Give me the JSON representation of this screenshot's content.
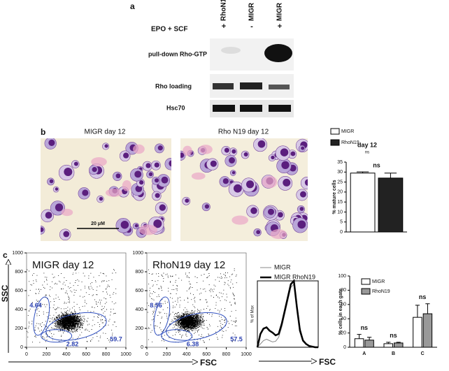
{
  "panel_a": {
    "label": "a",
    "treatment": "EPO + SCF",
    "lanes": [
      {
        "name": "RhoN19",
        "sign": "+"
      },
      {
        "name": "MIGR",
        "sign": "-"
      },
      {
        "name": "MIGR",
        "sign": "+"
      }
    ],
    "blots": [
      "pull-down Rho-GTP",
      "Rho loading",
      "Hsc70"
    ]
  },
  "panel_b": {
    "label": "b",
    "images": [
      "MIGR day 12",
      "Rho N19 day 12"
    ],
    "scale_bar": "20 μM"
  },
  "panel_c": {
    "label": "c",
    "y_axis": "SSC",
    "x_axis": "FSC",
    "hist_x_axis": "FSC"
  },
  "chart_data": [
    {
      "type": "bar",
      "title": "day 12",
      "annotations": [
        "ns"
      ],
      "ylabel": "% mature cells",
      "categories": [
        null
      ],
      "ylim": [
        0,
        35
      ],
      "yticks": [
        0,
        5,
        10,
        15,
        20,
        25,
        30,
        35
      ],
      "series": [
        {
          "name": "MIGR",
          "color": "#ffffff",
          "values": [
            29.5
          ],
          "errors": [
            0.6
          ]
        },
        {
          "name": "RhoN19",
          "color": "#222222",
          "values": [
            27
          ],
          "errors": [
            2.5
          ]
        }
      ]
    },
    {
      "type": "scatter",
      "title": "MIGR day 12",
      "xlim": [
        0,
        1000
      ],
      "xticks": [
        0,
        200,
        400,
        600,
        800,
        1000
      ],
      "ylim": [
        0,
        1000
      ],
      "yticks": [
        0,
        200,
        400,
        600,
        800,
        1000
      ],
      "gates": [
        4.64,
        2.82,
        59.7
      ]
    },
    {
      "type": "scatter",
      "title": "RhoN19 day 12",
      "xlim": [
        0,
        1000
      ],
      "xticks": [
        0,
        200,
        400,
        600,
        800,
        1000
      ],
      "ylim": [
        0,
        1000
      ],
      "yticks": [
        0,
        200,
        400,
        600,
        800,
        1000
      ],
      "gates": [
        8.56,
        6.38,
        57.5
      ]
    },
    {
      "type": "line",
      "ylabel": "% of Max",
      "xlim": [
        0,
        1000
      ],
      "ylim": [
        0,
        100
      ],
      "x": [
        0,
        50,
        100,
        150,
        200,
        250,
        300,
        350,
        400,
        450,
        500,
        550,
        600,
        650,
        700,
        750,
        800,
        850,
        900,
        950,
        1000
      ],
      "series": [
        {
          "name": "MIGR",
          "color": "#888888",
          "width": 1,
          "values": [
            0,
            5,
            10,
            12,
            10,
            8,
            9,
            15,
            30,
            50,
            70,
            90,
            95,
            65,
            30,
            12,
            5,
            2,
            1,
            0,
            0
          ]
        },
        {
          "name": "MIGR RhoN19",
          "color": "#000000",
          "width": 2.5,
          "values": [
            0,
            20,
            28,
            30,
            25,
            22,
            18,
            20,
            35,
            55,
            75,
            95,
            100,
            60,
            25,
            10,
            5,
            2,
            1,
            0,
            0
          ]
        }
      ]
    },
    {
      "type": "bar",
      "ylabel": "% cells in each gate",
      "categories": [
        "A",
        "B",
        "C"
      ],
      "annotations": [
        "ns",
        "ns",
        "ns"
      ],
      "ylim": [
        0,
        100
      ],
      "yticks": [
        0,
        20,
        40,
        60,
        80,
        100
      ],
      "series": [
        {
          "name": "MIGR",
          "color": "#ffffff",
          "values": [
            12,
            5,
            42
          ],
          "errors": [
            6,
            2,
            17
          ]
        },
        {
          "name": "RhoN19",
          "color": "#999999",
          "values": [
            10,
            6,
            47
          ],
          "errors": [
            4,
            1,
            14
          ]
        }
      ]
    }
  ]
}
